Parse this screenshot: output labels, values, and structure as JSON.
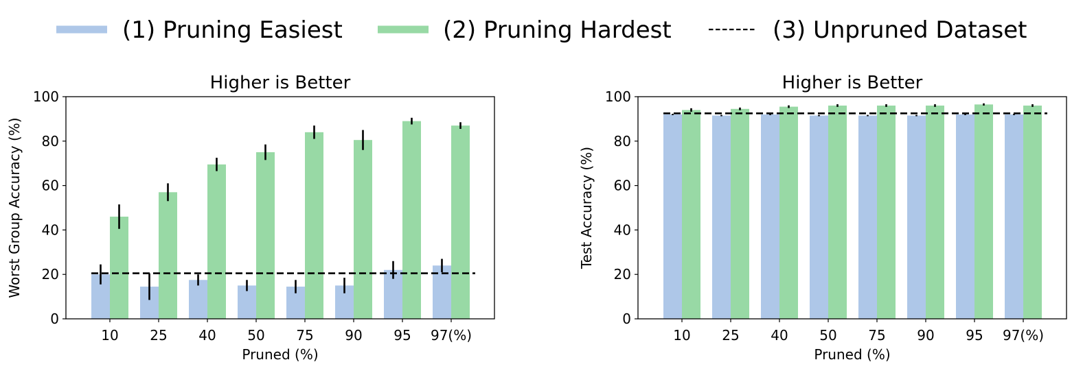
{
  "legend": {
    "items": [
      {
        "label": "(1) Pruning Easiest",
        "color": "#aec7e8",
        "style": "solid"
      },
      {
        "label": "(2) Pruning Hardest",
        "color": "#98d9a5",
        "style": "solid"
      },
      {
        "label": "(3) Unpruned Dataset",
        "color": "#000000",
        "style": "dashed"
      }
    ]
  },
  "chart_data": [
    {
      "type": "bar",
      "title": "Higher is Better",
      "xlabel": "Pruned (%)",
      "ylabel": "Worst Group Accuracy (%)",
      "ylim": [
        0,
        100
      ],
      "yticks": [
        0,
        20,
        40,
        60,
        80,
        100
      ],
      "categories": [
        "10",
        "25",
        "40",
        "50",
        "75",
        "90",
        "95",
        "97(%)"
      ],
      "series": [
        {
          "name": "(1) Pruning Easiest",
          "color": "#aec7e8",
          "values": [
            20,
            14.5,
            17.5,
            15,
            14.5,
            15,
            22,
            24
          ],
          "errors": [
            4.5,
            6,
            2.5,
            2.5,
            3,
            3.5,
            4,
            3
          ]
        },
        {
          "name": "(2) Pruning Hardest",
          "color": "#98d9a5",
          "values": [
            46,
            57,
            69.5,
            75,
            84,
            80.5,
            89,
            87
          ],
          "errors": [
            5.5,
            4,
            3,
            3.5,
            3,
            4.5,
            1.5,
            1.5
          ]
        }
      ],
      "reference": {
        "name": "(3) Unpruned Dataset",
        "value": 20.5
      }
    },
    {
      "type": "bar",
      "title": "Higher is Better",
      "xlabel": "Pruned (%)",
      "ylabel": "Test Accuracy (%)",
      "ylim": [
        0,
        100
      ],
      "yticks": [
        0,
        20,
        40,
        60,
        80,
        100
      ],
      "categories": [
        "10",
        "25",
        "40",
        "50",
        "75",
        "90",
        "95",
        "97(%)"
      ],
      "series": [
        {
          "name": "(1) Pruning Easiest",
          "color": "#aec7e8",
          "values": [
            92,
            91.5,
            92,
            91.5,
            91.5,
            91.5,
            92,
            92
          ],
          "errors": [
            0.3,
            0.3,
            0.3,
            0.3,
            0.3,
            0.3,
            0.3,
            0.3
          ]
        },
        {
          "name": "(2) Pruning Hardest",
          "color": "#98d9a5",
          "values": [
            94,
            94.5,
            95.5,
            96,
            96,
            96,
            96.5,
            96
          ],
          "errors": [
            0.8,
            0.6,
            0.6,
            0.6,
            0.6,
            0.6,
            0.5,
            0.6
          ]
        }
      ],
      "reference": {
        "name": "(3) Unpruned Dataset",
        "value": 92.5
      }
    }
  ]
}
